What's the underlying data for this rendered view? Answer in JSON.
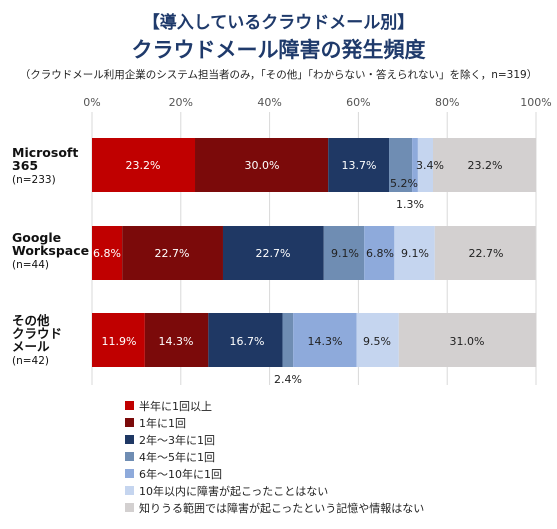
{
  "header": {
    "title_line1": "【導入しているクラウドメール別】",
    "title_line2": "クラウドメール障害の発生頻度",
    "note": "（クラウドメール利用企業のシステム担当者のみ，「その他」「わからない・答えられない」を除く，n=319）"
  },
  "chart_data": {
    "type": "bar",
    "orientation": "horizontal",
    "stacked": true,
    "xlim": [
      0,
      100
    ],
    "x_ticks": [
      "0%",
      "20%",
      "40%",
      "60%",
      "80%",
      "100%"
    ],
    "categories": [
      {
        "lines": [
          "Microsoft",
          "365"
        ],
        "n": "(n=233)"
      },
      {
        "lines": [
          "Google",
          "Workspace"
        ],
        "n": "(n=44)"
      },
      {
        "lines": [
          "その他",
          "クラウド",
          "メール"
        ],
        "n": "(n=42)"
      }
    ],
    "series": [
      {
        "name": "半年に1回以上",
        "color": "#c00000",
        "label_color": "#ffffff",
        "values": [
          23.2,
          6.8,
          11.9
        ]
      },
      {
        "name": "1年に1回",
        "color": "#7b0a0a",
        "label_color": "#ffffff",
        "values": [
          30.0,
          22.7,
          14.3
        ]
      },
      {
        "name": "2年〜3年に1回",
        "color": "#1f3864",
        "label_color": "#ffffff",
        "values": [
          13.7,
          22.7,
          16.7
        ]
      },
      {
        "name": "4年〜5年に1回",
        "color": "#6f8db3",
        "label_color": "#222222",
        "values": [
          5.2,
          9.1,
          2.4
        ]
      },
      {
        "name": "6年〜10年に1回",
        "color": "#8eaadb",
        "label_color": "#222222",
        "values": [
          1.3,
          6.8,
          14.3
        ]
      },
      {
        "name": "10年以内に障害が起こったことはない",
        "color": "#c5d5ef",
        "label_color": "#222222",
        "values": [
          3.4,
          9.1,
          9.5
        ]
      },
      {
        "name": "知りうる範囲では障害が起こったという記憶や情報はない",
        "color": "#d3d0d0",
        "label_color": "#222222",
        "values": [
          23.2,
          22.7,
          31.0
        ]
      }
    ],
    "data_labels": [
      [
        "23.2%",
        "30.0%",
        "13.7%",
        "5.2%",
        "1.3%",
        "3.4%",
        "23.2%"
      ],
      [
        "6.8%",
        "22.7%",
        "22.7%",
        "9.1%",
        "6.8%",
        "9.1%",
        "22.7%"
      ],
      [
        "11.9%",
        "14.3%",
        "16.7%",
        "2.4%",
        "14.3%",
        "9.5%",
        "31.0%"
      ]
    ],
    "grid": true,
    "legend_position": "bottom-left"
  }
}
